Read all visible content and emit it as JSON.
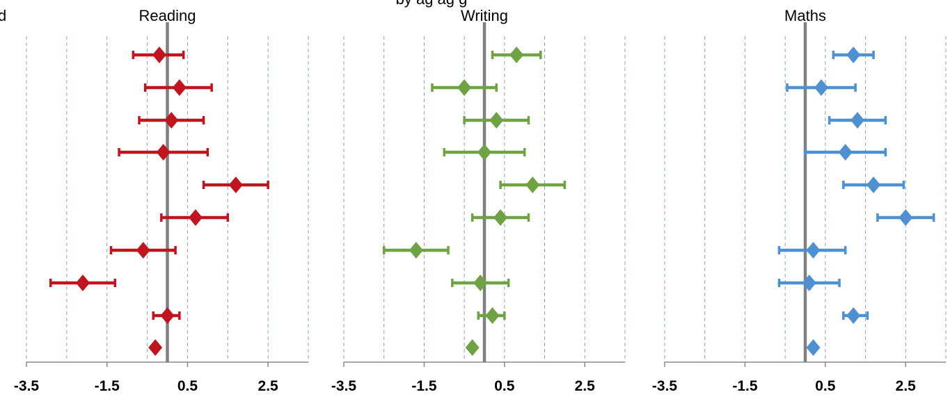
{
  "header": {
    "top_fragment": "by ag  ag  g",
    "left_fragment": "d"
  },
  "chart_data": [
    {
      "type": "scatter",
      "title": "Reading",
      "xlim": [
        -3.5,
        3.5
      ],
      "xticks": [
        -3.5,
        -1.5,
        0.5,
        2.5
      ],
      "xtick_labels": [
        "-3.5",
        "-1.5",
        "0.5",
        "2.5"
      ],
      "gridlines": [
        -3.5,
        -2.5,
        -1.5,
        -0.5,
        0.5,
        1.5,
        2.5,
        3.5
      ],
      "reference_line": 0,
      "color": "#C0151F",
      "points": [
        {
          "y": -0.2,
          "lo": -0.85,
          "hi": 0.4
        },
        {
          "y": 0.3,
          "lo": -0.55,
          "hi": 1.1
        },
        {
          "y": 0.1,
          "lo": -0.7,
          "hi": 0.9
        },
        {
          "y": -0.1,
          "lo": -1.2,
          "hi": 1.0
        },
        {
          "y": 1.7,
          "lo": 0.9,
          "hi": 2.5
        },
        {
          "y": 0.7,
          "lo": -0.15,
          "hi": 1.5
        },
        {
          "y": -0.6,
          "lo": -1.4,
          "hi": 0.2
        },
        {
          "y": -2.1,
          "lo": -2.9,
          "hi": -1.3
        },
        {
          "y": 0.0,
          "lo": -0.35,
          "hi": 0.3
        },
        {
          "y": -0.3,
          "lo": -0.3,
          "hi": -0.3
        }
      ]
    },
    {
      "type": "scatter",
      "title": "Writing",
      "xlim": [
        -3.5,
        3.5
      ],
      "xticks": [
        -3.5,
        -1.5,
        0.5,
        2.5
      ],
      "xtick_labels": [
        "-3.5",
        "-1.5",
        "0.5",
        "2.5"
      ],
      "gridlines": [
        -3.5,
        -2.5,
        -1.5,
        -0.5,
        0.5,
        1.5,
        2.5,
        3.5
      ],
      "reference_line": 0,
      "color": "#6EA242",
      "points": [
        {
          "y": 0.8,
          "lo": 0.2,
          "hi": 1.4
        },
        {
          "y": -0.5,
          "lo": -1.3,
          "hi": 0.3
        },
        {
          "y": 0.3,
          "lo": -0.5,
          "hi": 1.1
        },
        {
          "y": 0.0,
          "lo": -1.0,
          "hi": 1.0
        },
        {
          "y": 1.2,
          "lo": 0.4,
          "hi": 2.0
        },
        {
          "y": 0.4,
          "lo": -0.3,
          "hi": 1.1
        },
        {
          "y": -1.7,
          "lo": -2.5,
          "hi": -0.9
        },
        {
          "y": -0.1,
          "lo": -0.8,
          "hi": 0.6
        },
        {
          "y": 0.2,
          "lo": -0.15,
          "hi": 0.5
        },
        {
          "y": -0.3,
          "lo": -0.3,
          "hi": -0.3
        }
      ]
    },
    {
      "type": "scatter",
      "title": "Maths",
      "xlim": [
        -3.5,
        3.5
      ],
      "xticks": [
        -3.5,
        -1.5,
        0.5,
        2.5
      ],
      "xtick_labels": [
        "-3.5",
        "-1.5",
        "0.5",
        "2.5"
      ],
      "gridlines": [
        -3.5,
        -2.5,
        -1.5,
        -0.5,
        0.5,
        1.5,
        2.5,
        3.5
      ],
      "reference_line": 0,
      "color": "#4F90D0",
      "points": [
        {
          "y": 1.2,
          "lo": 0.7,
          "hi": 1.7
        },
        {
          "y": 0.4,
          "lo": -0.45,
          "hi": 1.25
        },
        {
          "y": 1.3,
          "lo": 0.6,
          "hi": 2.0
        },
        {
          "y": 1.0,
          "lo": 0.0,
          "hi": 2.0
        },
        {
          "y": 1.7,
          "lo": 0.95,
          "hi": 2.45
        },
        {
          "y": 2.5,
          "lo": 1.8,
          "hi": 3.2
        },
        {
          "y": 0.2,
          "lo": -0.65,
          "hi": 1.0
        },
        {
          "y": 0.1,
          "lo": -0.65,
          "hi": 0.85
        },
        {
          "y": 1.2,
          "lo": 0.95,
          "hi": 1.55
        },
        {
          "y": 0.2,
          "lo": 0.2,
          "hi": 0.2
        }
      ]
    }
  ]
}
